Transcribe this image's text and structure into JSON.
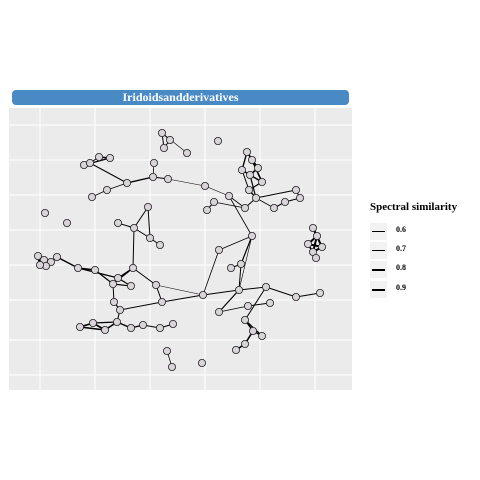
{
  "title": "Iridoidsandderivatives",
  "colors": {
    "title_bg": "#4a8ac4",
    "panel_bg": "#ebebeb",
    "grid": "#ffffff",
    "node_fill": "#d9d4d9",
    "node_stroke": "#222222",
    "edge": "#000000"
  },
  "legend": {
    "title": "Spectral similarity",
    "items": [
      {
        "label": "0.6",
        "value": 0.6
      },
      {
        "label": "0.7",
        "value": 0.7
      },
      {
        "label": "0.8",
        "value": 0.8
      },
      {
        "label": "0.9",
        "value": 0.9
      }
    ]
  }
}
